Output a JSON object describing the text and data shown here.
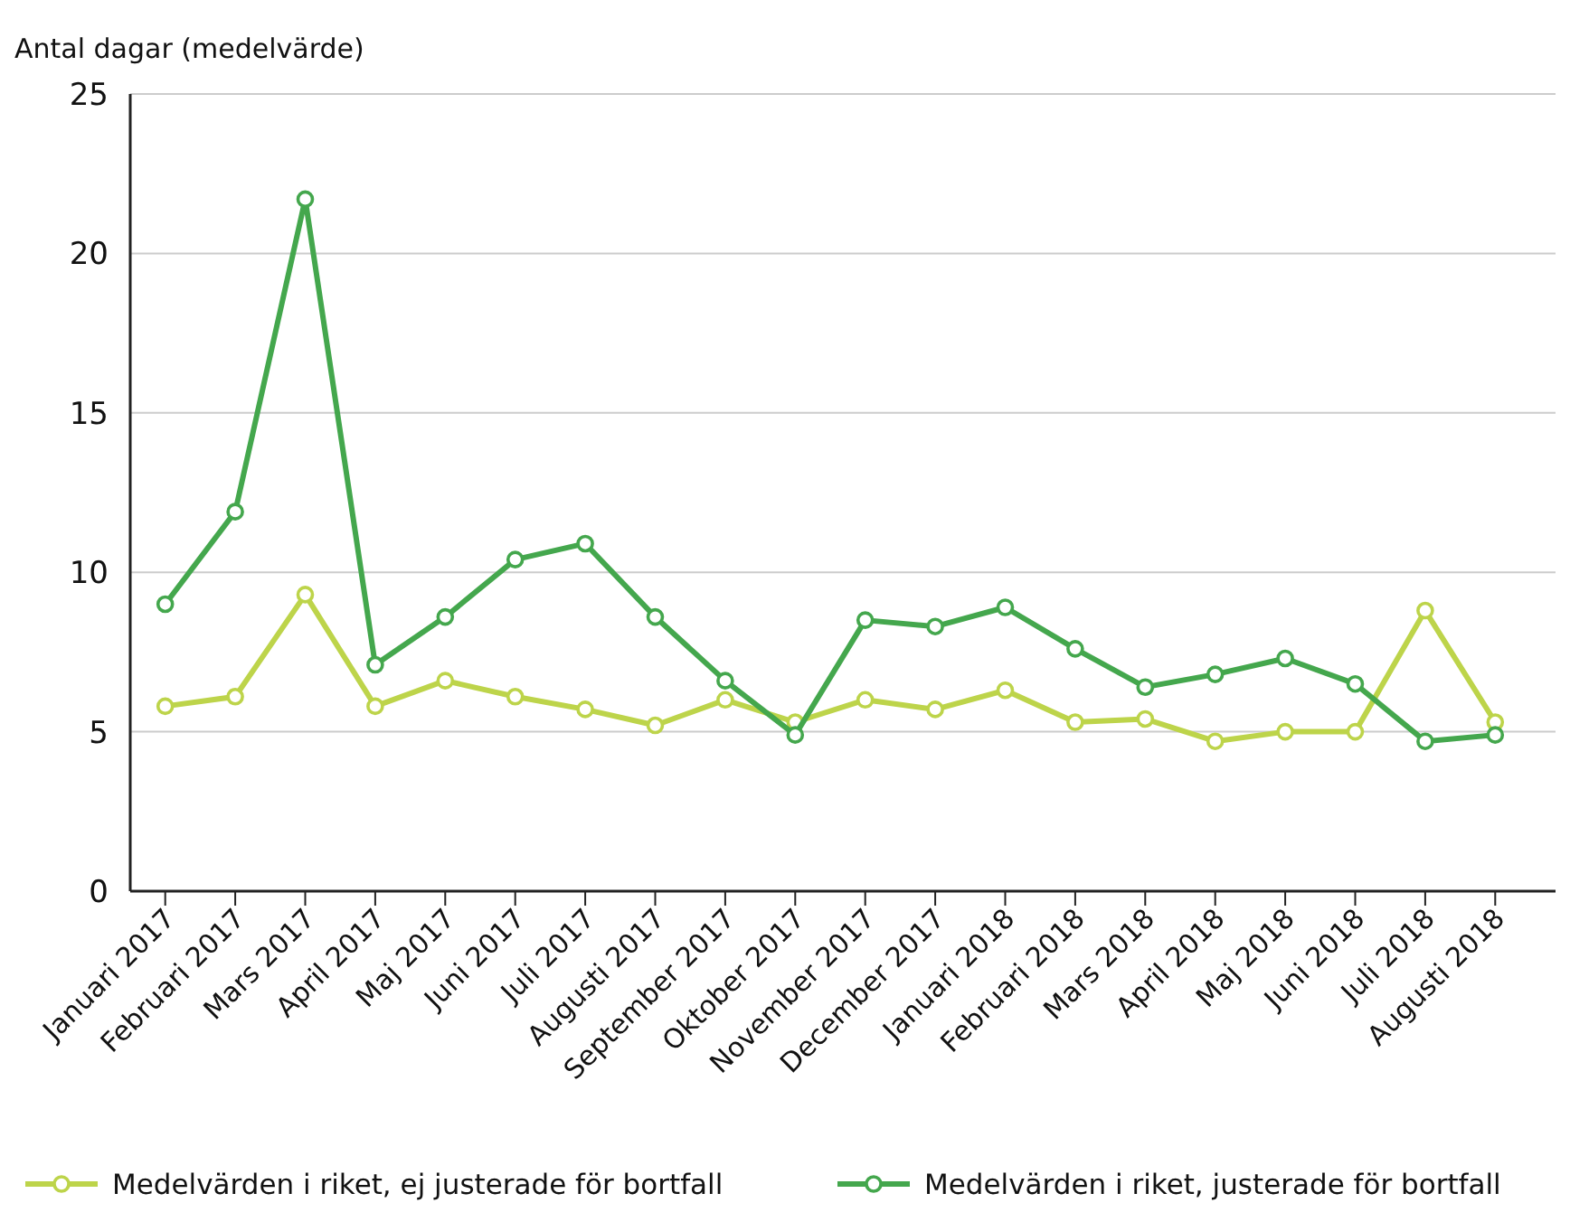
{
  "chart_data": {
    "type": "line",
    "ylabel": "Antal dagar (medelvärde)",
    "categories": [
      "Januari 2017",
      "Februari 2017",
      "Mars 2017",
      "April 2017",
      "Maj 2017",
      "Juni 2017",
      "Juli 2017",
      "Augusti 2017",
      "September 2017",
      "Oktober 2017",
      "November 2017",
      "December 2017",
      "Januari 2018",
      "Februari 2018",
      "Mars 2018",
      "April 2018",
      "Maj 2018",
      "Juni 2018",
      "Juli 2018",
      "Augusti 2018"
    ],
    "series": [
      {
        "name": "Medelvärden i riket, ej justerade för bortfall",
        "color": "#bdd44a",
        "values": [
          5.8,
          6.1,
          9.3,
          5.8,
          6.6,
          6.1,
          5.7,
          5.2,
          6.0,
          5.3,
          6.0,
          5.7,
          6.3,
          5.3,
          5.4,
          4.7,
          5.0,
          5.0,
          8.8,
          5.3
        ]
      },
      {
        "name": "Medelvärden i riket, justerade för bortfall",
        "color": "#44a74d",
        "values": [
          9.0,
          11.9,
          21.7,
          7.1,
          8.6,
          10.4,
          10.9,
          8.6,
          6.6,
          4.9,
          8.5,
          8.3,
          8.9,
          7.6,
          6.4,
          6.8,
          7.3,
          6.5,
          4.7,
          4.9
        ]
      }
    ],
    "ylim": [
      0,
      25
    ],
    "yticks": [
      0,
      5,
      10,
      15,
      20,
      25
    ],
    "grid": "y",
    "legend": "bottom",
    "marker": "circle",
    "line_style": "solid"
  }
}
